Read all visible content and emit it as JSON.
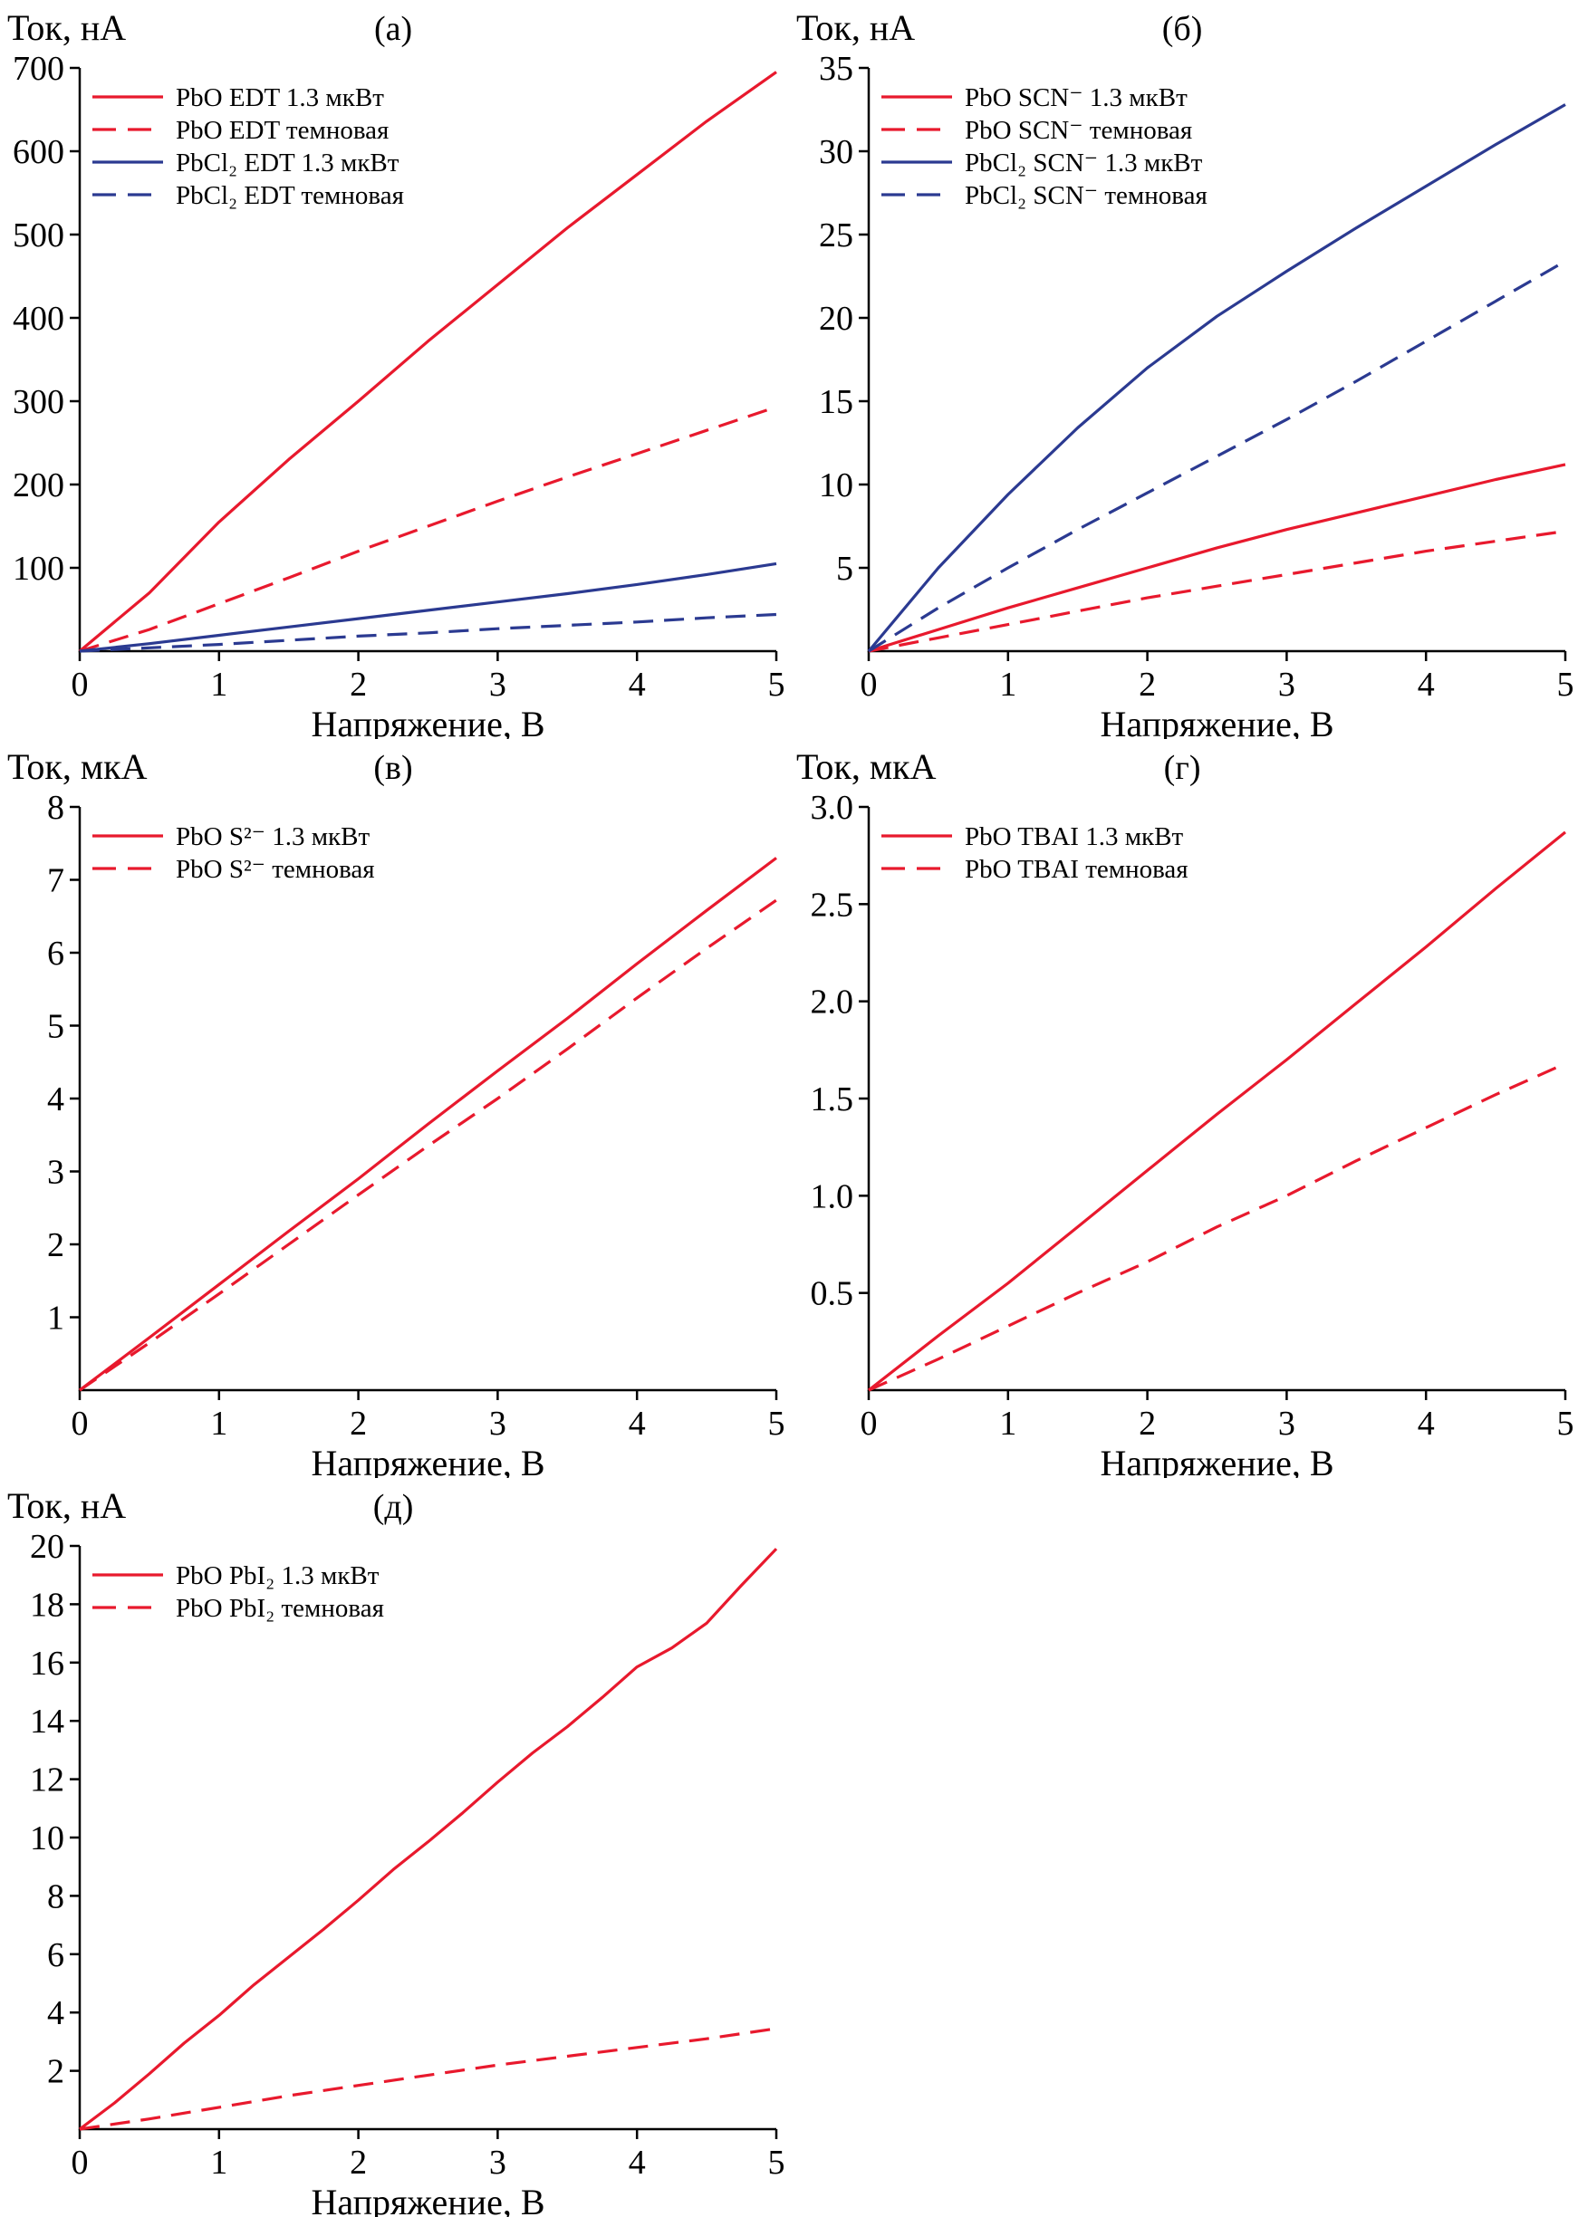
{
  "figure": {
    "description": "Five current-voltage (I-V) line chart panels",
    "panel_count": 5
  },
  "colors": {
    "red": "#e8192d",
    "blue": "#2b3a91",
    "axis": "#000000"
  },
  "chart_data": [
    {
      "id": "a",
      "type": "line",
      "panel_label": "(а)",
      "ylabel": "Ток, нА",
      "xlabel": "Напряжение, В",
      "xlim": [
        0,
        5
      ],
      "ylim": [
        0,
        700
      ],
      "xticks": [
        0,
        1,
        2,
        3,
        4,
        5
      ],
      "xtick_labels": [
        "0",
        "1",
        "2",
        "3",
        "4",
        "5"
      ],
      "yticks": [
        100,
        200,
        300,
        400,
        500,
        600,
        700
      ],
      "ytick_labels": [
        "100",
        "200",
        "300",
        "400",
        "500",
        "600",
        "700"
      ],
      "grid": false,
      "legend_position": "top-left-inside",
      "series": [
        {
          "name": "PbO EDT 1.3 мкВт",
          "color": "#e8192d",
          "style": "solid",
          "x": [
            0,
            0.5,
            1,
            1.5,
            2,
            2.5,
            3,
            3.5,
            4,
            4.5,
            5
          ],
          "y": [
            0,
            70,
            155,
            230,
            300,
            372,
            440,
            508,
            572,
            636,
            695
          ]
        },
        {
          "name": "PbO EDT темновая",
          "color": "#e8192d",
          "style": "dashed",
          "x": [
            0,
            0.5,
            1,
            1.5,
            2,
            2.5,
            3,
            3.5,
            4,
            4.5,
            5
          ],
          "y": [
            0,
            26,
            57,
            88,
            120,
            150,
            180,
            209,
            237,
            265,
            293
          ]
        },
        {
          "name": "PbCl₂ EDT 1.3 мкВт",
          "color": "#2b3a91",
          "style": "solid",
          "x": [
            0,
            0.5,
            1,
            1.5,
            2,
            2.5,
            3,
            3.5,
            4,
            4.5,
            5
          ],
          "y": [
            0,
            9,
            19,
            29,
            39,
            49,
            59,
            69,
            80,
            92,
            105
          ]
        },
        {
          "name": "PbCl₂ EDT темновая",
          "color": "#2b3a91",
          "style": "dashed",
          "x": [
            0,
            0.5,
            1,
            1.5,
            2,
            2.5,
            3,
            3.5,
            4,
            4.5,
            5
          ],
          "y": [
            0,
            4,
            8,
            13,
            18,
            22,
            27,
            31,
            35,
            40,
            44
          ]
        }
      ]
    },
    {
      "id": "b",
      "type": "line",
      "panel_label": "(б)",
      "ylabel": "Ток, нА",
      "xlabel": "Напряжение, В",
      "xlim": [
        0,
        5
      ],
      "ylim": [
        0,
        35
      ],
      "xticks": [
        0,
        1,
        2,
        3,
        4,
        5
      ],
      "xtick_labels": [
        "0",
        "1",
        "2",
        "3",
        "4",
        "5"
      ],
      "yticks": [
        5,
        10,
        15,
        20,
        25,
        30,
        35
      ],
      "ytick_labels": [
        "5",
        "10",
        "15",
        "20",
        "25",
        "30",
        "35"
      ],
      "grid": false,
      "legend_position": "top-left-inside",
      "series": [
        {
          "name": "PbO SCN⁻ 1.3 мкВт",
          "color": "#e8192d",
          "style": "solid",
          "x": [
            0,
            0.5,
            1,
            1.5,
            2,
            2.5,
            3,
            3.5,
            4,
            4.5,
            5
          ],
          "y": [
            0,
            1.3,
            2.6,
            3.8,
            5.0,
            6.2,
            7.3,
            8.3,
            9.3,
            10.3,
            11.2
          ]
        },
        {
          "name": "PbO SCN⁻ темновая",
          "color": "#e8192d",
          "style": "dashed",
          "x": [
            0,
            0.5,
            1,
            1.5,
            2,
            2.5,
            3,
            3.5,
            4,
            4.5,
            5
          ],
          "y": [
            0,
            0.8,
            1.6,
            2.4,
            3.2,
            3.9,
            4.6,
            5.3,
            6.0,
            6.6,
            7.2
          ]
        },
        {
          "name": "PbCl₂ SCN⁻ 1.3 мкВт",
          "color": "#2b3a91",
          "style": "solid",
          "x": [
            0,
            0.5,
            1,
            1.5,
            2,
            2.5,
            3,
            3.5,
            4,
            4.5,
            5
          ],
          "y": [
            0,
            5.0,
            9.4,
            13.4,
            17.0,
            20.1,
            22.8,
            25.4,
            27.9,
            30.4,
            32.8
          ]
        },
        {
          "name": "PbCl₂ SCN⁻ темновая",
          "color": "#2b3a91",
          "style": "dashed",
          "x": [
            0,
            0.5,
            1,
            1.5,
            2,
            2.5,
            3,
            3.5,
            4,
            4.5,
            5
          ],
          "y": [
            0,
            2.6,
            5.0,
            7.3,
            9.5,
            11.7,
            13.9,
            16.2,
            18.6,
            21.0,
            23.4
          ]
        }
      ]
    },
    {
      "id": "v",
      "type": "line",
      "panel_label": "(в)",
      "ylabel": "Ток, мкА",
      "xlabel": "Напряжение, В",
      "xlim": [
        0,
        5
      ],
      "ylim": [
        0,
        8
      ],
      "xticks": [
        0,
        1,
        2,
        3,
        4,
        5
      ],
      "xtick_labels": [
        "0",
        "1",
        "2",
        "3",
        "4",
        "5"
      ],
      "yticks": [
        1,
        2,
        3,
        4,
        5,
        6,
        7,
        8
      ],
      "ytick_labels": [
        "1",
        "2",
        "3",
        "4",
        "5",
        "6",
        "7",
        "8"
      ],
      "grid": false,
      "legend_position": "top-left-inside",
      "series": [
        {
          "name": "PbO S²⁻ 1.3 мкВт",
          "color": "#e8192d",
          "style": "solid",
          "x": [
            0,
            0.5,
            1,
            1.5,
            2,
            2.5,
            3,
            3.5,
            4,
            4.5,
            5
          ],
          "y": [
            0,
            0.72,
            1.45,
            2.18,
            2.9,
            3.65,
            4.38,
            5.1,
            5.85,
            6.58,
            7.3
          ]
        },
        {
          "name": "PbO S²⁻ темновая",
          "color": "#e8192d",
          "style": "dashed",
          "x": [
            0,
            0.5,
            1,
            1.5,
            2,
            2.5,
            3,
            3.5,
            4,
            4.5,
            5
          ],
          "y": [
            0,
            0.65,
            1.32,
            2.0,
            2.68,
            3.35,
            4.0,
            4.68,
            5.38,
            6.06,
            6.72
          ]
        }
      ]
    },
    {
      "id": "g",
      "type": "line",
      "panel_label": "(г)",
      "ylabel": "Ток, мкА",
      "xlabel": "Напряжение, В",
      "xlim": [
        0,
        5
      ],
      "ylim": [
        0,
        3.0
      ],
      "xticks": [
        0,
        1,
        2,
        3,
        4,
        5
      ],
      "xtick_labels": [
        "0",
        "1",
        "2",
        "3",
        "4",
        "5"
      ],
      "yticks": [
        0.5,
        1.0,
        1.5,
        2.0,
        2.5,
        3.0
      ],
      "ytick_labels": [
        "0.5",
        "1.0",
        "1.5",
        "2.0",
        "2.5",
        "3.0"
      ],
      "grid": false,
      "legend_position": "top-left-inside",
      "series": [
        {
          "name": "PbO TBAI 1.3 мкВт",
          "color": "#e8192d",
          "style": "solid",
          "x": [
            0,
            0.5,
            1,
            1.5,
            2,
            2.5,
            3,
            3.5,
            4,
            4.5,
            5
          ],
          "y": [
            0,
            0.28,
            0.55,
            0.84,
            1.13,
            1.42,
            1.7,
            1.99,
            2.28,
            2.58,
            2.87
          ]
        },
        {
          "name": "PbO TBAI темновая",
          "color": "#e8192d",
          "style": "dashed",
          "x": [
            0,
            0.5,
            1,
            1.5,
            2,
            2.5,
            3,
            3.5,
            4,
            4.5,
            5
          ],
          "y": [
            0,
            0.16,
            0.33,
            0.5,
            0.66,
            0.84,
            1.0,
            1.18,
            1.35,
            1.52,
            1.68
          ]
        }
      ]
    },
    {
      "id": "d",
      "type": "line",
      "panel_label": "(д)",
      "ylabel": "Ток, нА",
      "xlabel": "Напряжение, В",
      "xlim": [
        0,
        5
      ],
      "ylim": [
        0,
        20
      ],
      "xticks": [
        0,
        1,
        2,
        3,
        4,
        5
      ],
      "xtick_labels": [
        "0",
        "1",
        "2",
        "3",
        "4",
        "5"
      ],
      "yticks": [
        2,
        4,
        6,
        8,
        10,
        12,
        14,
        16,
        18,
        20
      ],
      "ytick_labels": [
        "2",
        "4",
        "6",
        "8",
        "10",
        "12",
        "14",
        "16",
        "18",
        "20"
      ],
      "grid": false,
      "legend_position": "top-left-inside",
      "series": [
        {
          "name": "PbO PbI₂ 1.3 мкВт",
          "color": "#e8192d",
          "style": "solid",
          "x": [
            0,
            0.25,
            0.5,
            0.75,
            1,
            1.25,
            1.5,
            1.75,
            2,
            2.25,
            2.5,
            2.75,
            3,
            3.25,
            3.5,
            3.75,
            4,
            4.25,
            4.5,
            4.75,
            5
          ],
          "y": [
            0,
            0.9,
            1.9,
            2.95,
            3.9,
            4.95,
            5.9,
            6.85,
            7.85,
            8.9,
            9.85,
            10.85,
            11.9,
            12.9,
            13.8,
            14.8,
            15.85,
            16.5,
            17.35,
            18.65,
            19.9
          ]
        },
        {
          "name": "PbO PbI₂ темновая",
          "color": "#e8192d",
          "style": "dashed",
          "x": [
            0,
            0.5,
            1,
            1.5,
            2,
            2.5,
            3,
            3.5,
            4,
            4.5,
            5
          ],
          "y": [
            0,
            0.35,
            0.75,
            1.15,
            1.5,
            1.85,
            2.2,
            2.5,
            2.8,
            3.1,
            3.45
          ]
        }
      ]
    }
  ]
}
